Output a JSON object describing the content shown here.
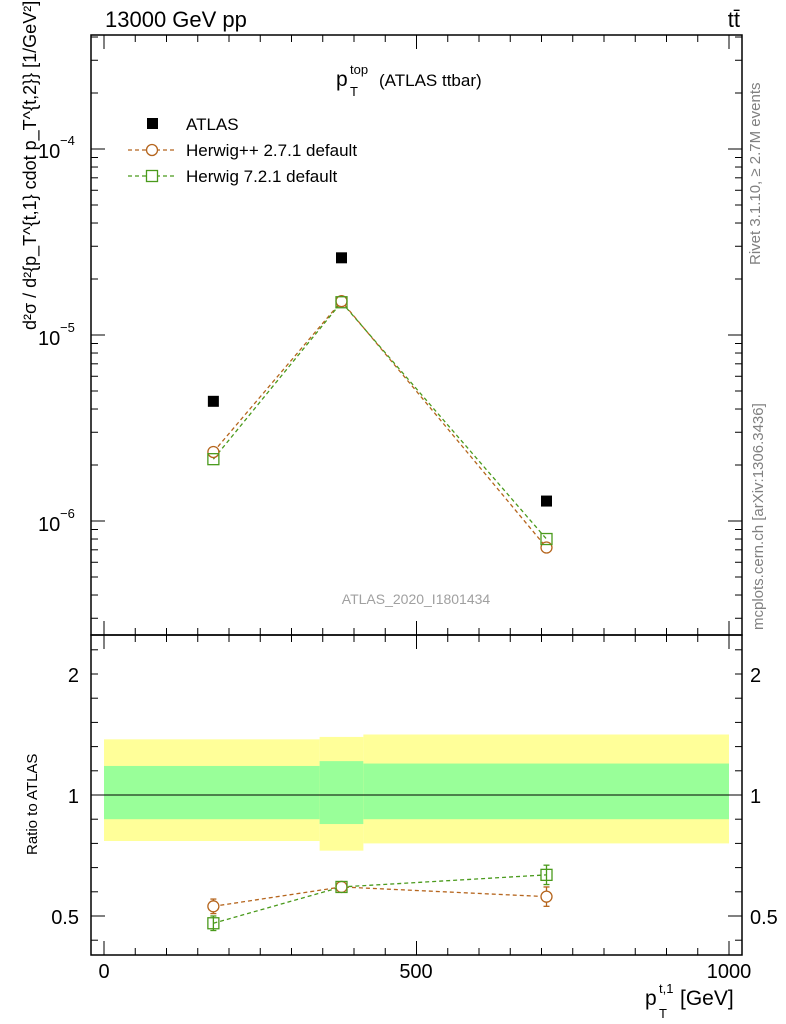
{
  "header": {
    "left": "13000 GeV pp",
    "right": "tt̄"
  },
  "side_labels": {
    "rivet": "Rivet 3.1.10, ≥ 2.7M events",
    "mcplots": "mcplots.cern.ch [arXiv:1306.3436]"
  },
  "main_panel": {
    "title_main": "p",
    "title_sup": "top",
    "title_sub": "T",
    "title_rest": "(ATLAS ttbar)",
    "ylabel": "d²σ / d²{p_T^{t,1} cdot p_T^{t,2}} [1/GeV²]",
    "ytick_labels": [
      "10",
      "10",
      "10"
    ],
    "ytick_exponents": [
      "−6",
      "−5",
      "−4"
    ],
    "watermark": "ATLAS_2020_I1801434"
  },
  "ratio_panel": {
    "ylabel": "Ratio to ATLAS",
    "ytick_labels": [
      "0.5",
      "1",
      "2"
    ]
  },
  "xaxis": {
    "label_main": "p",
    "label_sup": "t,1",
    "label_sub": "T",
    "label_unit": "[GeV]",
    "tick_labels": [
      "0",
      "500",
      "1000"
    ]
  },
  "legend": {
    "entries": [
      "ATLAS",
      "Herwig++ 2.7.1 default",
      "Herwig 7.2.1 default"
    ]
  },
  "colors": {
    "atlas": "#000000",
    "herwigpp": "#b5651d",
    "herwig7": "#4a9a1c",
    "band_outer": "#ffff99",
    "band_inner": "#99ff99"
  },
  "chart_data": [
    {
      "type": "scatter",
      "panel": "main",
      "yscale": "log",
      "xlim": [
        -25,
        1025
      ],
      "ylim": [
        2.5e-07,
        0.0005
      ],
      "x": [
        175,
        380,
        708
      ],
      "series": [
        {
          "name": "ATLAS",
          "values": [
            4.4e-06,
            2.6e-05,
            1.28e-06
          ],
          "marker": "filled-square"
        },
        {
          "name": "Herwig++ 2.7.1 default",
          "values": [
            2.35e-06,
            1.52e-05,
            7.2e-07
          ],
          "marker": "open-circle"
        },
        {
          "name": "Herwig 7.2.1 default",
          "values": [
            2.15e-06,
            1.5e-05,
            8e-07
          ],
          "marker": "open-square"
        }
      ]
    },
    {
      "type": "scatter",
      "panel": "ratio",
      "xlim": [
        -25,
        1025
      ],
      "ylim": [
        0.35,
        2.35
      ],
      "x": [
        175,
        380,
        708
      ],
      "reference": 1,
      "bands": [
        {
          "x0": 0,
          "x1": 345,
          "outer": [
            0.81,
            1.23
          ],
          "inner": [
            0.9,
            1.12
          ]
        },
        {
          "x0": 345,
          "x1": 415,
          "outer": [
            0.77,
            1.24
          ],
          "inner": [
            0.88,
            1.14
          ]
        },
        {
          "x0": 415,
          "x1": 1000,
          "outer": [
            0.8,
            1.25
          ],
          "inner": [
            0.9,
            1.13
          ]
        }
      ],
      "series": [
        {
          "name": "Herwig++ 2.7.1 default",
          "values": [
            0.54,
            0.62,
            0.58
          ],
          "errors": [
            0.03,
            0.02,
            0.04
          ]
        },
        {
          "name": "Herwig 7.2.1 default",
          "values": [
            0.47,
            0.62,
            0.67
          ],
          "errors": [
            0.03,
            0.02,
            0.04
          ]
        }
      ]
    }
  ]
}
